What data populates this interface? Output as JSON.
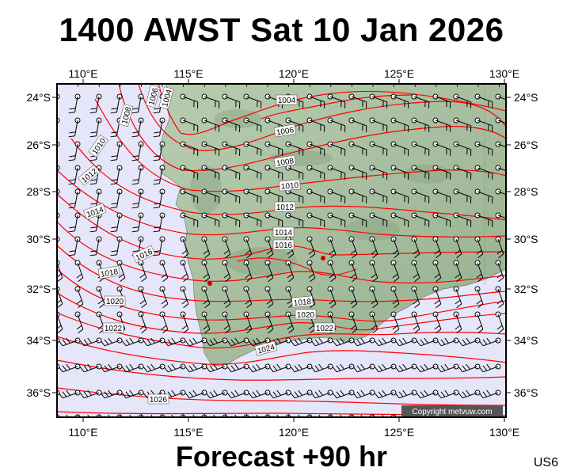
{
  "header": {
    "title": "1400 AWST Sat 10 Jan 2026"
  },
  "footer": {
    "forecast": "Forecast +90 hr",
    "code": "US6"
  },
  "copyright": "Copyright metvuw.com",
  "map": {
    "lon_labels": [
      "110°E",
      "115°E",
      "120°E",
      "125°E",
      "130°E"
    ],
    "lat_labels": [
      "24°S",
      "26°S",
      "28°S",
      "30°S",
      "32°S",
      "34°S",
      "36°S"
    ],
    "lon_range": [
      109,
      130
    ],
    "lat_range": [
      -23.5,
      -37
    ],
    "isobar_labels": [
      "1004",
      "1006",
      "1008",
      "1010",
      "1012",
      "1014",
      "1016",
      "1018",
      "1020",
      "1022",
      "1024",
      "1026"
    ],
    "colors": {
      "ocean": "#e6e6fa",
      "land": "#a9c3a0",
      "isobar": "#ff0000",
      "wind": "#000000"
    }
  }
}
